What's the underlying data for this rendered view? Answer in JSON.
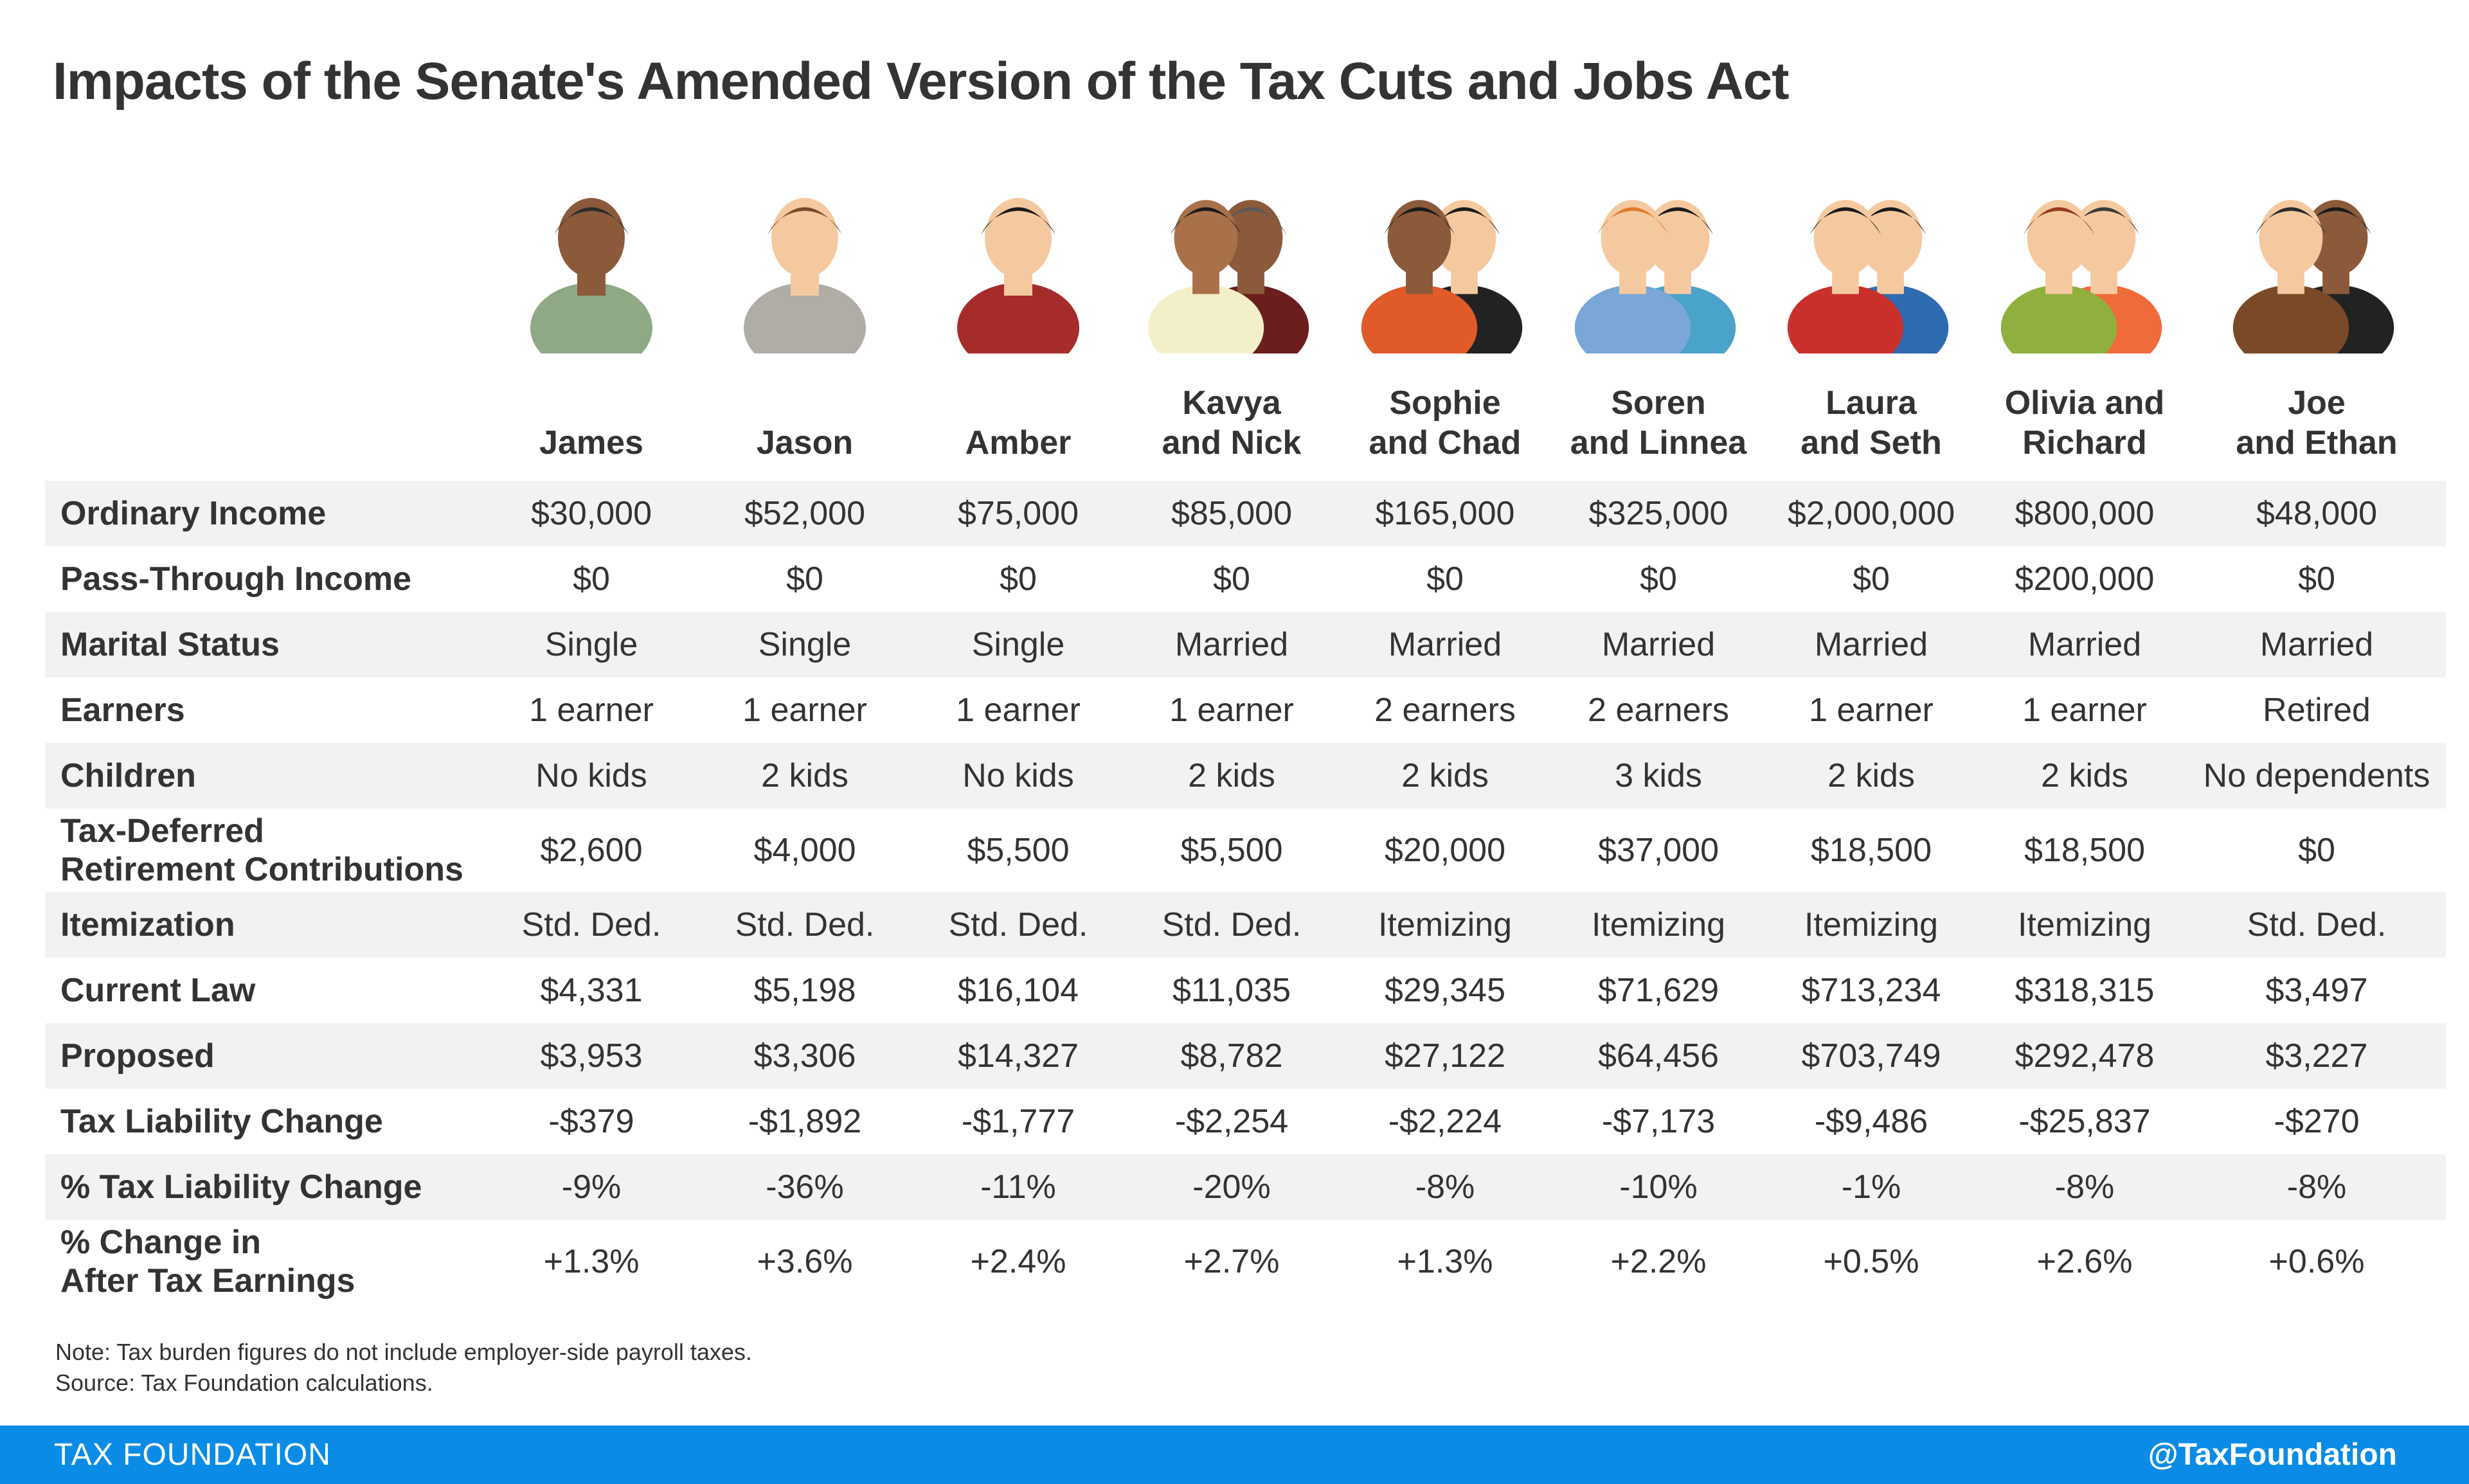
{
  "title": "Impacts of the Senate's Amended Version of the Tax Cuts and Jobs Act",
  "colors": {
    "footer_bg": "#0a8ce6",
    "row_shade": "#f2f2f2",
    "text": "#333333"
  },
  "households": [
    {
      "name": "James",
      "avatar": "man-glasses-afro-icon"
    },
    {
      "name": "Jason",
      "avatar": "man-beard-icon"
    },
    {
      "name": "Amber",
      "avatar": "woman-icon"
    },
    {
      "name": "Kavya\nand Nick",
      "avatar": "couple-icon"
    },
    {
      "name": "Sophie\nand Chad",
      "avatar": "couple-icon"
    },
    {
      "name": "Soren\nand Linnea",
      "avatar": "couple-glasses-icon"
    },
    {
      "name": "Laura\nand Seth",
      "avatar": "couple-icon"
    },
    {
      "name": "Olivia and\nRichard",
      "avatar": "couple-icon"
    },
    {
      "name": "Joe\nand Ethan",
      "avatar": "couple-men-icon"
    }
  ],
  "rows": [
    {
      "label": "Ordinary Income",
      "values": [
        "$30,000",
        "$52,000",
        "$75,000",
        "$85,000",
        "$165,000",
        "$325,000",
        "$2,000,000",
        "$800,000",
        "$48,000"
      ]
    },
    {
      "label": "Pass-Through Income",
      "values": [
        "$0",
        "$0",
        "$0",
        "$0",
        "$0",
        "$0",
        "$0",
        "$200,000",
        "$0"
      ]
    },
    {
      "label": "Marital Status",
      "values": [
        "Single",
        "Single",
        "Single",
        "Married",
        "Married",
        "Married",
        "Married",
        "Married",
        "Married"
      ]
    },
    {
      "label": "Earners",
      "values": [
        "1 earner",
        "1 earner",
        "1 earner",
        "1 earner",
        "2 earners",
        "2 earners",
        "1 earner",
        "1 earner",
        "Retired"
      ]
    },
    {
      "label": "Children",
      "values": [
        "No kids",
        "2 kids",
        "No kids",
        "2 kids",
        "2 kids",
        "3 kids",
        "2 kids",
        "2 kids",
        "No dependents"
      ]
    },
    {
      "label": "Tax-Deferred\nRetirement Contributions",
      "values": [
        "$2,600",
        "$4,000",
        "$5,500",
        "$5,500",
        "$20,000",
        "$37,000",
        "$18,500",
        "$18,500",
        "$0"
      ]
    },
    {
      "label": "Itemization",
      "values": [
        "Std. Ded.",
        "Std. Ded.",
        "Std. Ded.",
        "Std. Ded.",
        "Itemizing",
        "Itemizing",
        "Itemizing",
        "Itemizing",
        "Std. Ded."
      ]
    },
    {
      "label": "Current Law",
      "values": [
        "$4,331",
        "$5,198",
        "$16,104",
        "$11,035",
        "$29,345",
        "$71,629",
        "$713,234",
        "$318,315",
        "$3,497"
      ]
    },
    {
      "label": "Proposed",
      "values": [
        "$3,953",
        "$3,306",
        "$14,327",
        "$8,782",
        "$27,122",
        "$64,456",
        "$703,749",
        "$292,478",
        "$3,227"
      ]
    },
    {
      "label": "Tax Liability Change",
      "values": [
        "-$379",
        "-$1,892",
        "-$1,777",
        "-$2,254",
        "-$2,224",
        "-$7,173",
        "-$9,486",
        "-$25,837",
        "-$270"
      ]
    },
    {
      "label": "% Tax Liability Change",
      "values": [
        "-9%",
        "-36%",
        "-11%",
        "-20%",
        "-8%",
        "-10%",
        "-1%",
        "-8%",
        "-8%"
      ]
    },
    {
      "label": "% Change in\nAfter Tax Earnings",
      "values": [
        "+1.3%",
        "+3.6%",
        "+2.4%",
        "+2.7%",
        "+1.3%",
        "+2.2%",
        "+0.5%",
        "+2.6%",
        "+0.6%"
      ]
    }
  ],
  "notes": {
    "line1": "Note: Tax burden figures do not include employer-side payroll taxes.",
    "line2": "Source: Tax Foundation calculations."
  },
  "footer": {
    "left": "TAX FOUNDATION",
    "right": "@TaxFoundation"
  }
}
